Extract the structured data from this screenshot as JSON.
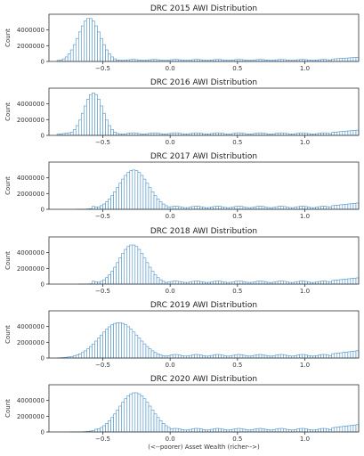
{
  "chart_data": [
    {
      "type": "histogram",
      "title": "DRC 2015 AWI Distribution",
      "ylabel": "Count",
      "xlabel": "",
      "xlim": [
        -0.9,
        1.4
      ],
      "ylim": [
        0,
        6000000
      ],
      "xticks": [
        -0.5,
        0.0,
        0.5,
        1.0
      ],
      "yticks": [
        0,
        2000000,
        4000000
      ],
      "peak_center": -0.6,
      "peak_width": 0.08,
      "peak_height": 5500000,
      "tail_level": 200000,
      "grid": false,
      "bar_color": "#4a90c8"
    },
    {
      "type": "histogram",
      "title": "DRC 2016 AWI Distribution",
      "ylabel": "Count",
      "xlabel": "",
      "xlim": [
        -0.9,
        1.4
      ],
      "ylim": [
        0,
        6000000
      ],
      "xticks": [
        -0.5,
        0.0,
        0.5,
        1.0
      ],
      "yticks": [
        0,
        2000000,
        4000000
      ],
      "peak_center": -0.57,
      "peak_width": 0.07,
      "peak_height": 5400000,
      "tail_level": 250000,
      "grid": false,
      "bar_color": "#4a90c8"
    },
    {
      "type": "histogram",
      "title": "DRC 2017 AWI Distribution",
      "ylabel": "Count",
      "xlabel": "",
      "xlim": [
        -0.9,
        1.4
      ],
      "ylim": [
        0,
        6000000
      ],
      "xticks": [
        -0.5,
        0.0,
        0.5,
        1.0
      ],
      "yticks": [
        0,
        2000000,
        4000000
      ],
      "peak_center": -0.27,
      "peak_width": 0.11,
      "peak_height": 5000000,
      "tail_level": 300000,
      "grid": false,
      "bar_color": "#4a90c8"
    },
    {
      "type": "histogram",
      "title": "DRC 2018 AWI Distribution",
      "ylabel": "Count",
      "xlabel": "",
      "xlim": [
        -0.9,
        1.4
      ],
      "ylim": [
        0,
        6000000
      ],
      "xticks": [
        -0.5,
        0.0,
        0.5,
        1.0
      ],
      "yticks": [
        0,
        2000000,
        4000000
      ],
      "peak_center": -0.28,
      "peak_width": 0.1,
      "peak_height": 5000000,
      "tail_level": 300000,
      "grid": false,
      "bar_color": "#4a90c8"
    },
    {
      "type": "histogram",
      "title": "DRC 2019 AWI Distribution",
      "ylabel": "Count",
      "xlabel": "",
      "xlim": [
        -0.9,
        1.4
      ],
      "ylim": [
        0,
        6000000
      ],
      "xticks": [
        -0.5,
        0.0,
        0.5,
        1.0
      ],
      "yticks": [
        0,
        2000000,
        4000000
      ],
      "peak_center": -0.38,
      "peak_width": 0.14,
      "peak_height": 4500000,
      "tail_level": 350000,
      "grid": false,
      "bar_color": "#4a90c8"
    },
    {
      "type": "histogram",
      "title": "DRC 2020 AWI Distribution",
      "ylabel": "Count",
      "xlabel": "(<--poorer) Asset Wealth (richer-->)",
      "xlim": [
        -0.9,
        1.4
      ],
      "ylim": [
        0,
        6000000
      ],
      "xticks": [
        -0.5,
        0.0,
        0.5,
        1.0
      ],
      "yticks": [
        0,
        2000000,
        4000000
      ],
      "peak_center": -0.26,
      "peak_width": 0.12,
      "peak_height": 5000000,
      "tail_level": 350000,
      "grid": false,
      "bar_color": "#4a90c8"
    }
  ]
}
